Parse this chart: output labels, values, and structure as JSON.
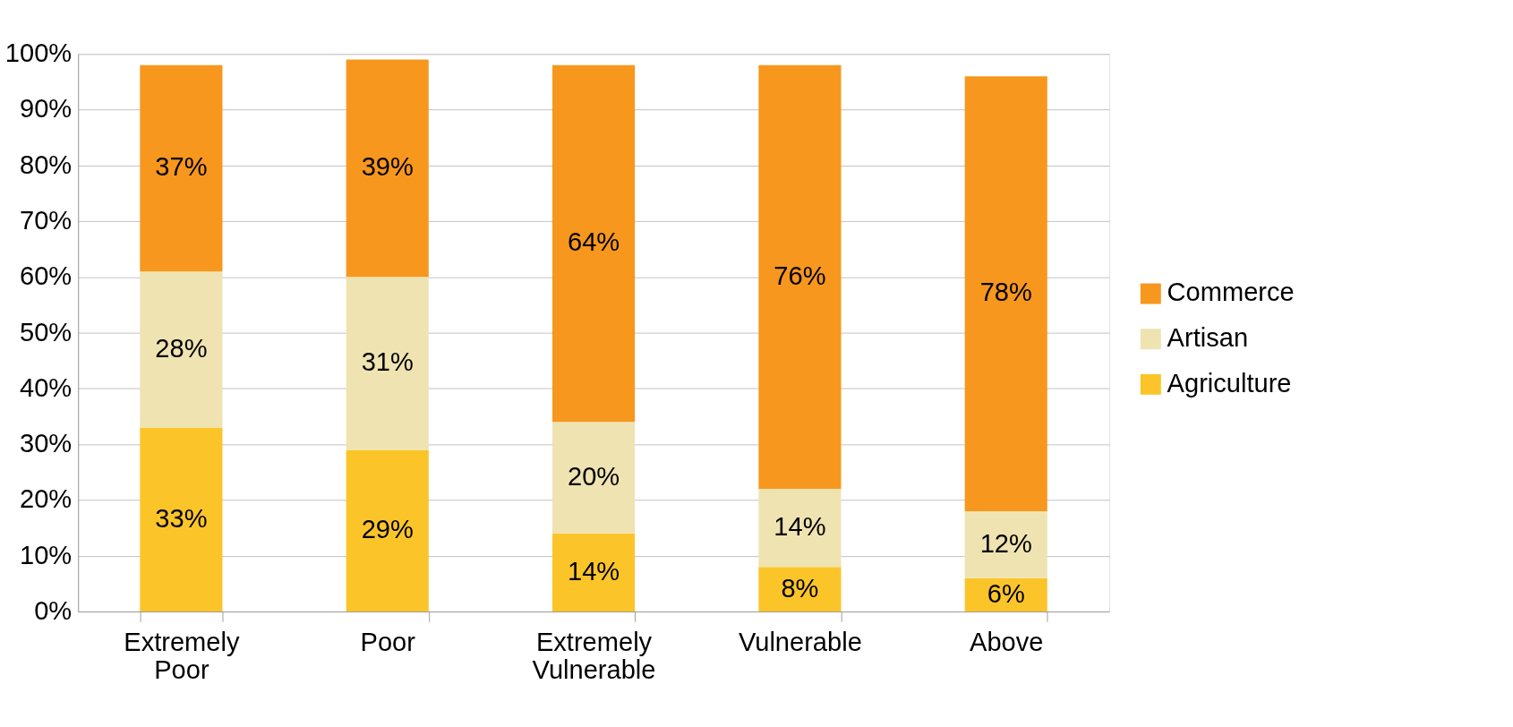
{
  "chart_data": {
    "type": "bar",
    "stacked": true,
    "categories": [
      "Extremely Poor",
      "Poor",
      "Extremely Vulnerable",
      "Vulnerable",
      "Above"
    ],
    "series": [
      {
        "name": "Agriculture",
        "color": "#fbc52a",
        "values": [
          33,
          29,
          14,
          8,
          6
        ],
        "value_labels": [
          "33%",
          "29%",
          "14%",
          "8%",
          "6%"
        ]
      },
      {
        "name": "Artisan",
        "color": "#efe3b1",
        "values": [
          28,
          31,
          20,
          14,
          12
        ],
        "value_labels": [
          "28%",
          "31%",
          "20%",
          "14%",
          "12%"
        ]
      },
      {
        "name": "Commerce",
        "color": "#f7971e",
        "values": [
          37,
          39,
          64,
          76,
          78
        ],
        "value_labels": [
          "37%",
          "39%",
          "64%",
          "76%",
          "78%"
        ]
      }
    ],
    "ylim": [
      0,
      100
    ],
    "yticks": [
      {
        "value": 0,
        "label": "0%"
      },
      {
        "value": 10,
        "label": "10%"
      },
      {
        "value": 20,
        "label": "20%"
      },
      {
        "value": 30,
        "label": "30%"
      },
      {
        "value": 40,
        "label": "40%"
      },
      {
        "value": 50,
        "label": "50%"
      },
      {
        "value": 60,
        "label": "60%"
      },
      {
        "value": 70,
        "label": "70%"
      },
      {
        "value": 80,
        "label": "80%"
      },
      {
        "value": 90,
        "label": "90%"
      },
      {
        "value": 100,
        "label": "100%"
      }
    ],
    "grid": "y",
    "legend": "right"
  }
}
